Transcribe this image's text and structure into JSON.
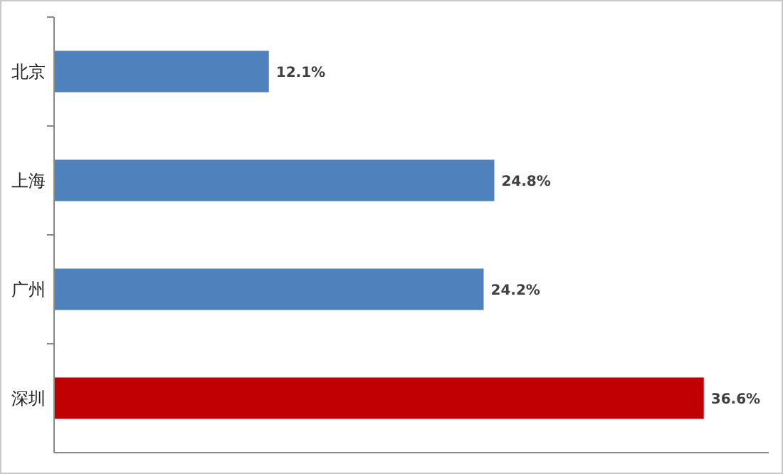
{
  "chart_data": {
    "type": "bar",
    "orientation": "horizontal",
    "categories": [
      "北京",
      "上海",
      "广州",
      "深圳"
    ],
    "values": [
      12.1,
      24.8,
      24.2,
      36.6
    ],
    "colors": [
      "#4f81bd",
      "#4f81bd",
      "#4f81bd",
      "#c00000"
    ],
    "value_labels": [
      "12.1%",
      "24.8%",
      "24.2%",
      "36.6%"
    ]
  }
}
